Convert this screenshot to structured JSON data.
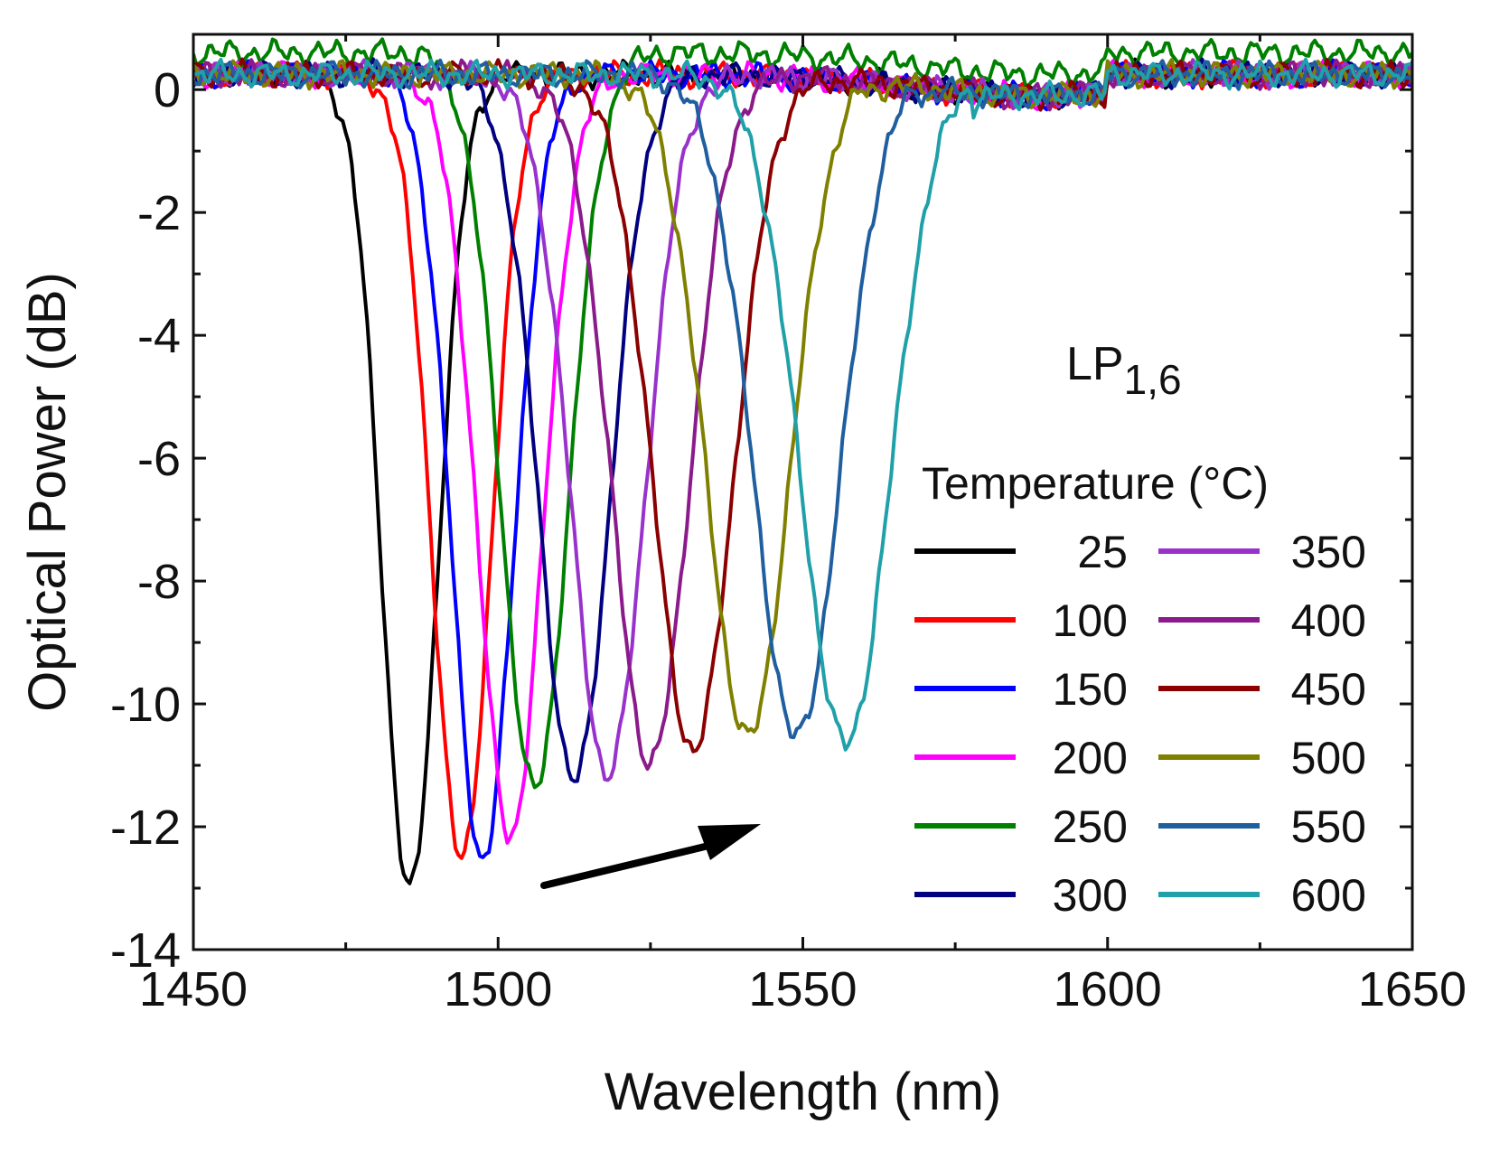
{
  "chart_data": {
    "type": "line",
    "title": "",
    "xlabel": "Wavelength (nm)",
    "ylabel": "Optical Power (dB)",
    "xlim": [
      1450,
      1650
    ],
    "ylim": [
      -14,
      0.9
    ],
    "xticks": [
      1450,
      1500,
      1550,
      1600,
      1650
    ],
    "yticks": [
      0,
      -2,
      -4,
      -6,
      -8,
      -10,
      -12,
      -14
    ],
    "mode_label": {
      "main": "LP",
      "sub": "1,6"
    },
    "legend_title": "Temperature (°C)",
    "legend_placement": "right",
    "annotation": "arrow indicating dip shift toward longer wavelength with increasing temperature",
    "series": [
      {
        "name": "25",
        "color": "#000000",
        "dip_wavelength": 1485.5,
        "dip_depth": -13.3
      },
      {
        "name": "100",
        "color": "#ff0000",
        "dip_wavelength": 1494.0,
        "dip_depth": -12.8
      },
      {
        "name": "150",
        "color": "#0000ff",
        "dip_wavelength": 1497.5,
        "dip_depth": -12.8
      },
      {
        "name": "200",
        "color": "#ff00ff",
        "dip_wavelength": 1502.0,
        "dip_depth": -12.4
      },
      {
        "name": "250",
        "color": "#008000",
        "dip_wavelength": 1506.0,
        "dip_depth": -12.0
      },
      {
        "name": "300",
        "color": "#000080",
        "dip_wavelength": 1512.5,
        "dip_depth": -11.5
      },
      {
        "name": "350",
        "color": "#9932cc",
        "dip_wavelength": 1518.0,
        "dip_depth": -11.4
      },
      {
        "name": "400",
        "color": "#8b1a8b",
        "dip_wavelength": 1525.0,
        "dip_depth": -11.2
      },
      {
        "name": "450",
        "color": "#8b0000",
        "dip_wavelength": 1532.0,
        "dip_depth": -11.0
      },
      {
        "name": "500",
        "color": "#808000",
        "dip_wavelength": 1541.0,
        "dip_depth": -10.8
      },
      {
        "name": "550",
        "color": "#1f5fa0",
        "dip_wavelength": 1549.0,
        "dip_depth": -10.8
      },
      {
        "name": "600",
        "color": "#20a0a8",
        "dip_wavelength": 1557.0,
        "dip_depth": -10.9
      }
    ]
  }
}
